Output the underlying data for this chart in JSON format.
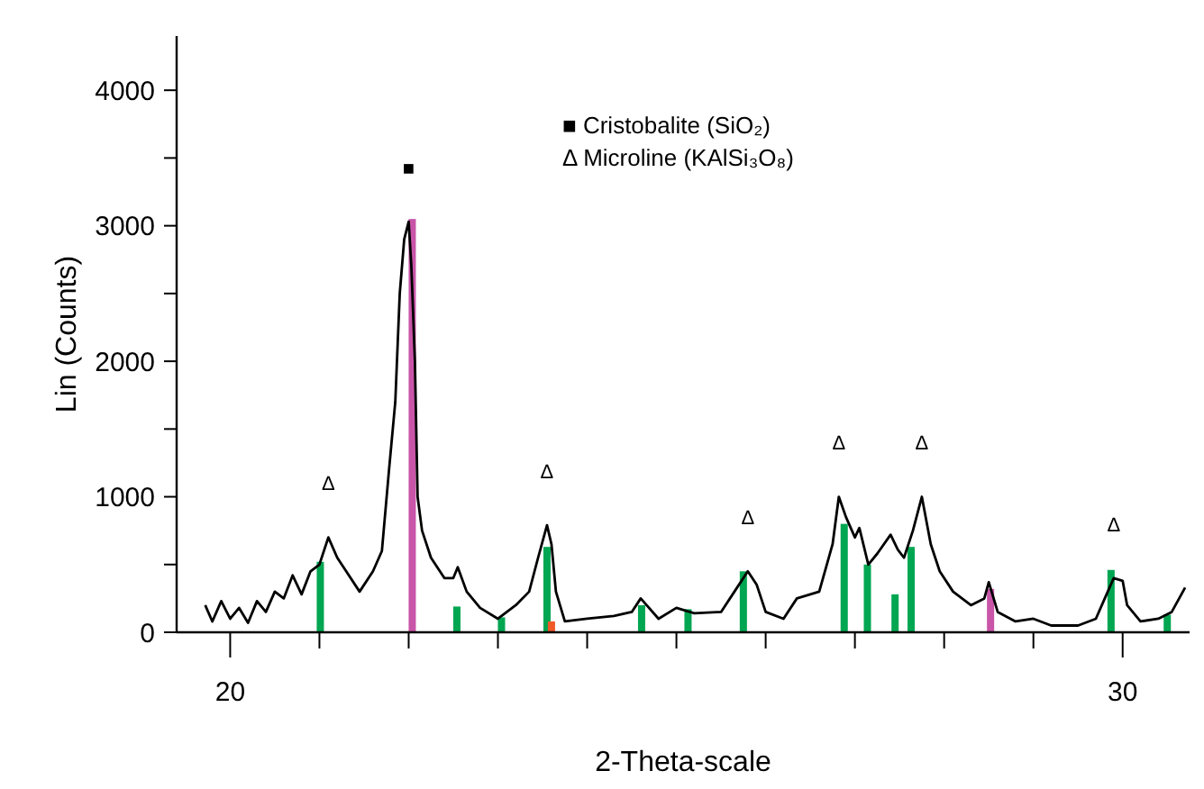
{
  "chart_data": {
    "type": "line",
    "xlabel": "2-Theta-scale",
    "ylabel": "Lin (Counts)",
    "xlim": [
      19.4,
      30.75
    ],
    "ylim": [
      0,
      4400
    ],
    "xticks": [
      20,
      {
        "value": 21,
        "label": null
      },
      {
        "value": 22,
        "label": null
      },
      {
        "value": 23,
        "label": null
      },
      {
        "value": 24,
        "label": null
      },
      {
        "value": 25,
        "label": null
      },
      {
        "value": 26,
        "label": null
      },
      {
        "value": 27,
        "label": null
      },
      {
        "value": 28,
        "label": null
      },
      {
        "value": 29,
        "label": null
      },
      30
    ],
    "yticks": [
      0,
      {
        "value": 500,
        "label": null
      },
      1000,
      {
        "value": 1500,
        "label": null
      },
      2000,
      {
        "value": 2500,
        "label": null
      },
      3000,
      {
        "value": 3500,
        "label": null
      },
      4000
    ],
    "grid": false,
    "series": [
      {
        "color": "#000000",
        "x": [
          19.72,
          19.8,
          19.9,
          20.0,
          20.1,
          20.2,
          20.3,
          20.4,
          20.5,
          20.6,
          20.7,
          20.8,
          20.9,
          21.0,
          21.1,
          21.2,
          21.3,
          21.45,
          21.6,
          21.7,
          21.78,
          21.85,
          21.9,
          21.95,
          22.0,
          22.03,
          22.07,
          22.1,
          22.15,
          22.25,
          22.4,
          22.5,
          22.55,
          22.65,
          22.8,
          23.0,
          23.2,
          23.35,
          23.45,
          23.55,
          23.6,
          23.65,
          23.75,
          24.0,
          24.3,
          24.5,
          24.6,
          24.8,
          25.0,
          25.2,
          25.5,
          25.65,
          25.8,
          25.9,
          26.0,
          26.2,
          26.35,
          26.6,
          26.75,
          26.82,
          26.9,
          27.0,
          27.05,
          27.15,
          27.25,
          27.4,
          27.48,
          27.55,
          27.65,
          27.75,
          27.85,
          27.95,
          28.1,
          28.3,
          28.45,
          28.5,
          28.6,
          28.8,
          29.0,
          29.2,
          29.5,
          29.7,
          29.8,
          29.9,
          30.0,
          30.05,
          30.2,
          30.4,
          30.55,
          30.7
        ],
        "values": [
          200,
          80,
          230,
          100,
          180,
          70,
          230,
          150,
          300,
          250,
          420,
          280,
          450,
          500,
          700,
          550,
          450,
          300,
          450,
          600,
          1200,
          1700,
          2500,
          2900,
          3030,
          2700,
          2000,
          1000,
          750,
          550,
          400,
          400,
          480,
          300,
          180,
          100,
          200,
          300,
          550,
          790,
          650,
          300,
          80,
          100,
          120,
          150,
          250,
          100,
          180,
          140,
          150,
          300,
          450,
          350,
          150,
          100,
          250,
          300,
          650,
          1000,
          850,
          700,
          770,
          500,
          580,
          720,
          610,
          550,
          750,
          1000,
          650,
          450,
          300,
          200,
          250,
          370,
          150,
          80,
          100,
          50,
          50,
          100,
          250,
          400,
          380,
          200,
          80,
          100,
          150,
          330
        ]
      },
      {
        "type": "bar",
        "color": "#00a651",
        "x": [
          21.01,
          22.54,
          23.04,
          23.55,
          24.61,
          25.13,
          25.75,
          26.88,
          27.14,
          27.45,
          27.63,
          29.87,
          30.5
        ],
        "values": [
          520,
          190,
          110,
          630,
          200,
          170,
          450,
          800,
          500,
          280,
          630,
          460,
          130
        ]
      },
      {
        "type": "bar",
        "color": "#c855a8",
        "x": [
          22.04,
          28.52
        ],
        "values": [
          3050,
          320
        ]
      },
      {
        "type": "bar",
        "color": "#f05a28",
        "x": [
          23.6
        ],
        "values": [
          80
        ]
      }
    ],
    "annotations": [
      "■  Cristobalite (SiO₂)",
      "Δ Microline (KAlSi₃O₈)",
      {
        "text": "■",
        "x": 22.0,
        "y": 3030
      },
      {
        "text": "Δ",
        "x": 21.1,
        "y": 700
      },
      {
        "text": "Δ",
        "x": 23.55,
        "y": 790
      },
      {
        "text": "Δ",
        "x": 25.8,
        "y": 450
      },
      {
        "text": "Δ",
        "x": 26.82,
        "y": 1000
      },
      {
        "text": "Δ",
        "x": 27.75,
        "y": 1000
      },
      {
        "text": "Δ",
        "x": 29.9,
        "y": 400
      }
    ]
  }
}
